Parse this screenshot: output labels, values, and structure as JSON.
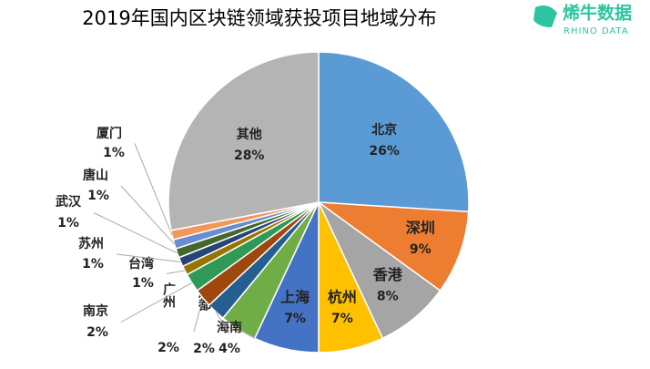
{
  "chart_data": {
    "type": "pie",
    "title": "2019年国内区块链领域获投项目地域分布",
    "categories": [
      "北京",
      "深圳",
      "香港",
      "杭州",
      "上海",
      "海南",
      "成都",
      "广州",
      "南京",
      "台湾",
      "苏州",
      "武汉",
      "唐山",
      "厦门",
      "其他"
    ],
    "values": [
      26,
      9,
      8,
      7,
      7,
      4,
      2,
      2,
      2,
      1,
      1,
      1,
      1,
      1,
      28
    ],
    "value_labels": [
      "26%",
      "9%",
      "8%",
      "7%",
      "7%",
      "4%",
      "2%",
      "2%",
      "2%",
      "1%",
      "1%",
      "1%",
      "1%",
      "1%",
      "28%"
    ],
    "colors": [
      "#5b9bd5",
      "#ed7d31",
      "#a5a5a5",
      "#ffc000",
      "#4472c4",
      "#70ad47",
      "#255e91",
      "#9e480e",
      "#2f9a55",
      "#997300",
      "#264478",
      "#43682b",
      "#698ed0",
      "#f1975a",
      "#b4b4b4"
    ]
  },
  "logo": {
    "name": "烯牛数据",
    "subtitle": "RHINO DATA"
  }
}
